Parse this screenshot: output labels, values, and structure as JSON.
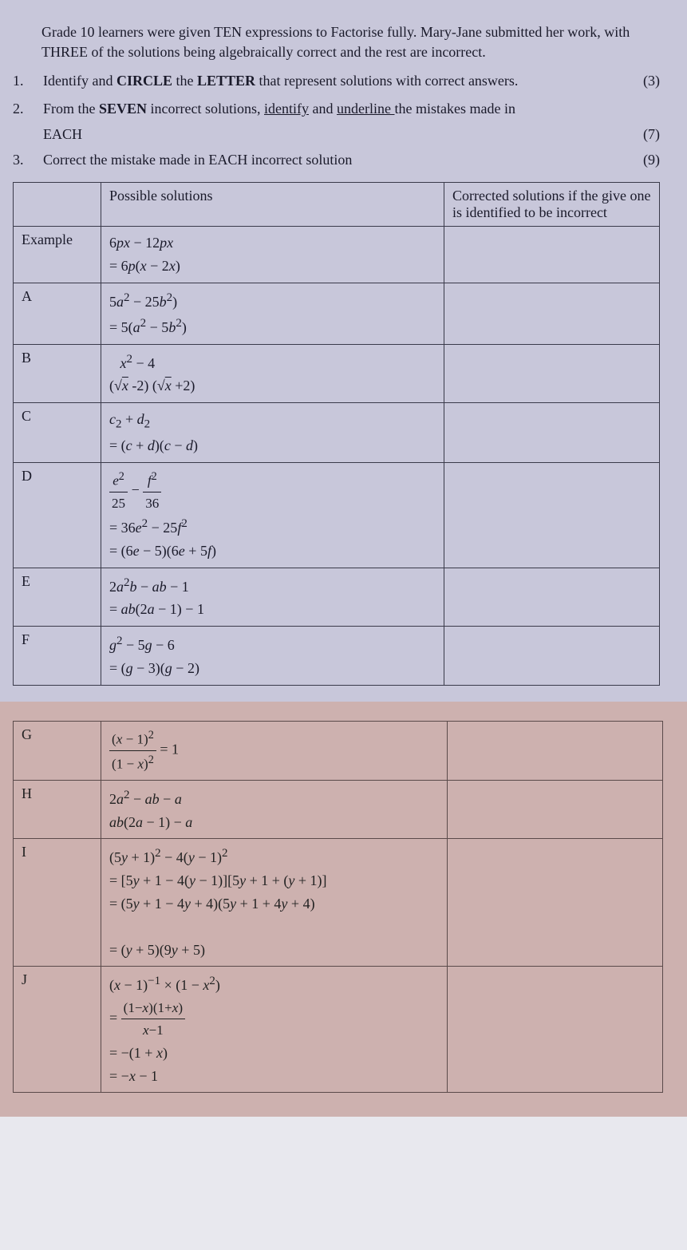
{
  "intro": "Grade 10 learners were given TEN expressions to Factorise fully. Mary-Jane submitted her work, with THREE of the solutions being algebraically correct and the rest are incorrect.",
  "questions": [
    {
      "num": "1.",
      "html": "Identify and <b>CIRCLE</b> the <b>LETTER</b> that represent solutions with correct answers.",
      "marks": "(3)"
    },
    {
      "num": "2.",
      "html": "From the <b>SEVEN</b> incorrect solutions, <span class='u'>identify</span> and <span class='u'>underline </span>the mistakes made in",
      "marks": ""
    },
    {
      "num": "",
      "html": "EACH",
      "marks": "(7)",
      "indent": true
    },
    {
      "num": "3.",
      "html": "Correct the mistake made in EACH incorrect solution",
      "marks": "(9)"
    }
  ],
  "headers": {
    "col1": "",
    "col2": "Possible solutions",
    "col3": "Corrected solutions if the give one is identified to be incorrect"
  },
  "rows1": [
    {
      "label": "Example",
      "sol": "6<i>px</i> − 12<i>px</i><br>= 6<i>p</i>(<i>x</i> − 2<i>x</i>)"
    },
    {
      "label": "A",
      "sol": "5<i>a</i><sup>2</sup> − 25<i>b</i><sup>2</sup>)<br>= 5(<i>a</i><sup>2</sup> − 5<i>b</i><sup>2</sup>)"
    },
    {
      "label": "B",
      "sol": "&nbsp;&nbsp;&nbsp;<i>x</i><sup>2</sup> − 4<br>(√<span style='text-decoration:overline'><i>x</i></span> -2) (√<span style='text-decoration:overline'><i>x</i></span> +2)"
    },
    {
      "label": "C",
      "sol": "<i>c</i><sub>2</sub> + <i>d</i><sub>2</sub><br>= (<i>c</i> + <i>d</i>)(<i>c</i> − <i>d</i>)"
    },
    {
      "label": "D",
      "sol": "<span class='frac'><span class='num'><i>e</i><sup>2</sup></span><span class='den'>25</span></span> − <span class='frac'><span class='num'><i>f</i><sup>2</sup></span><span class='den'>36</span></span><br>= 36<i>e</i><sup>2</sup> − 25<i>f</i><sup>2</sup><br>= (6<i>e</i> − 5)(6<i>e</i> + 5<i>f</i>)"
    },
    {
      "label": "E",
      "sol": "2<i>a</i><sup>2</sup><i>b</i> − <i>ab</i> − 1<br>= <i>ab</i>(2<i>a</i> − 1) − 1"
    },
    {
      "label": "F",
      "sol": "<i>g</i><sup>2</sup> − 5<i>g</i> − 6<br>= (<i>g</i> − 3)(<i>g</i> − 2)"
    }
  ],
  "rows2": [
    {
      "label": "G",
      "sol": "<span class='frac'><span class='num'>(<i>x</i> − 1)<sup>2</sup></span><span class='den'>(1 − <i>x</i>)<sup>2</sup></span></span> = 1"
    },
    {
      "label": "H",
      "sol": "2<i>a</i><sup>2</sup> − <i>ab</i> − <i>a</i><br><i>ab</i>(2<i>a</i> − 1) − <i>a</i>"
    },
    {
      "label": "I",
      "sol": "(5<i>y</i> + 1)<sup>2</sup> − 4(<i>y</i> − 1)<sup>2</sup><br>= [5<i>y</i> + 1 − 4(<i>y</i> − 1)][5<i>y</i> + 1 + (<i>y</i> + 1)]<br>= (5<i>y</i> + 1 − 4<i>y</i> + 4)(5<i>y</i> + 1 + 4<i>y</i> + 4)<br><br>= (<i>y</i> + 5)(9<i>y</i> + 5)"
    },
    {
      "label": "J",
      "sol": "(<i>x</i> − 1)<sup>−1</sup> × (1 − <i>x</i><sup>2</sup>)<br>= <span class='frac'><span class='num'>(1−<i>x</i>)(1+<i>x</i>)</span><span class='den'><i>x</i>−1</span></span><br>= −(1 + <i>x</i>)<br>= −<i>x</i> − 1"
    }
  ]
}
